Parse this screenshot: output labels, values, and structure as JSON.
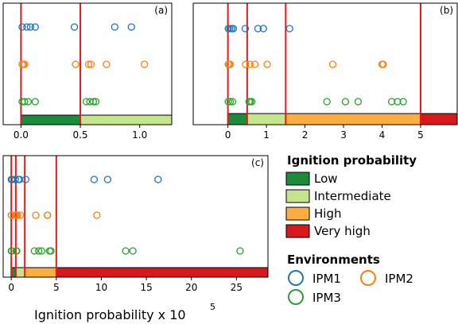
{
  "chart_data": [
    {
      "type": "scatter",
      "panel_label": "(a)",
      "xlim": [
        -0.15,
        1.27
      ],
      "xticks": [
        0.0,
        0.5,
        1.0
      ],
      "tick_labels": [
        "0.0",
        "0.5",
        "1.0"
      ],
      "thresholds": [
        0,
        0.5
      ],
      "bands": [
        {
          "level": "low",
          "from": 0,
          "to": 0.5
        },
        {
          "level": "intermediate",
          "from": 0.5,
          "to": 1.27
        }
      ],
      "series": [
        {
          "env": "ipm1",
          "values": [
            0.01,
            0.05,
            0.08,
            0.12,
            0.45,
            0.79,
            0.93
          ]
        },
        {
          "env": "ipm2",
          "values": [
            0.01,
            0.02,
            0.03,
            0.46,
            0.57,
            0.59,
            0.72,
            1.04
          ]
        },
        {
          "env": "ipm3",
          "values": [
            0.01,
            0.03,
            0.06,
            0.12,
            0.55,
            0.58,
            0.61,
            0.63
          ]
        }
      ]
    },
    {
      "type": "scatter",
      "panel_label": "(b)",
      "xlim": [
        -0.9,
        5.95
      ],
      "xticks": [
        0,
        1,
        2,
        3,
        4,
        5
      ],
      "tick_labels": [
        "0",
        "1",
        "2",
        "3",
        "4",
        "5"
      ],
      "thresholds": [
        0,
        0.5,
        1.5,
        5
      ],
      "bands": [
        {
          "level": "low",
          "from": 0,
          "to": 0.5
        },
        {
          "level": "intermediate",
          "from": 0.5,
          "to": 1.5
        },
        {
          "level": "high",
          "from": 1.5,
          "to": 5
        },
        {
          "level": "very_high",
          "from": 5,
          "to": 5.95
        }
      ],
      "series": [
        {
          "env": "ipm1",
          "values": [
            0.01,
            0.05,
            0.1,
            0.14,
            0.45,
            0.78,
            0.92,
            1.6
          ]
        },
        {
          "env": "ipm2",
          "values": [
            0.01,
            0.03,
            0.06,
            0.46,
            0.57,
            0.7,
            1.02,
            2.72,
            4.0,
            4.03
          ]
        },
        {
          "env": "ipm3",
          "values": [
            0.01,
            0.06,
            0.12,
            0.55,
            0.58,
            0.62,
            2.57,
            3.05,
            3.38,
            4.25,
            4.4,
            4.55
          ]
        }
      ]
    },
    {
      "type": "scatter",
      "panel_label": "(c)",
      "xlim": [
        -0.9,
        28.5
      ],
      "xticks": [
        0,
        5,
        10,
        15,
        20,
        25
      ],
      "tick_labels": [
        "0",
        "5",
        "10",
        "15",
        "20",
        "25"
      ],
      "thresholds": [
        0,
        0.5,
        1.5,
        5
      ],
      "bands": [
        {
          "level": "low",
          "from": 0,
          "to": 0.5
        },
        {
          "level": "intermediate",
          "from": 0.5,
          "to": 1.5
        },
        {
          "level": "high",
          "from": 1.5,
          "to": 5
        },
        {
          "level": "very_high",
          "from": 5,
          "to": 28.5
        }
      ],
      "series": [
        {
          "env": "ipm1",
          "values": [
            0.01,
            0.05,
            0.1,
            0.45,
            0.78,
            0.92,
            1.6,
            9.2,
            10.7,
            16.3
          ]
        },
        {
          "env": "ipm2",
          "values": [
            0.01,
            0.04,
            0.46,
            0.57,
            0.7,
            1.02,
            2.72,
            4.0,
            4.03,
            9.5
          ]
        },
        {
          "env": "ipm3",
          "values": [
            0.01,
            0.06,
            0.55,
            0.6,
            2.57,
            3.05,
            3.38,
            4.25,
            4.4,
            12.7,
            13.5,
            25.4
          ]
        }
      ]
    }
  ],
  "x_label": "Ignition probability x 10",
  "x_label_exponent": "5",
  "legend": {
    "probability_title": "Ignition probability",
    "probability_items": [
      {
        "key": "low",
        "label": "Low",
        "color": "#1a8c3c"
      },
      {
        "key": "intermediate",
        "label": "Intermediate",
        "color": "#c5e58c"
      },
      {
        "key": "high",
        "label": "High",
        "color": "#fdae43"
      },
      {
        "key": "very_high",
        "label": "Very high",
        "color": "#d7191c"
      }
    ],
    "environments_title": "Environments",
    "environment_items": [
      {
        "key": "ipm1",
        "label": "IPM1",
        "color": "#1f77b4"
      },
      {
        "key": "ipm2",
        "label": "IPM2",
        "color": "#ff7f0e"
      },
      {
        "key": "ipm3",
        "label": "IPM3",
        "color": "#2ca02c"
      }
    ]
  },
  "threshold_color": "#e31a1c"
}
